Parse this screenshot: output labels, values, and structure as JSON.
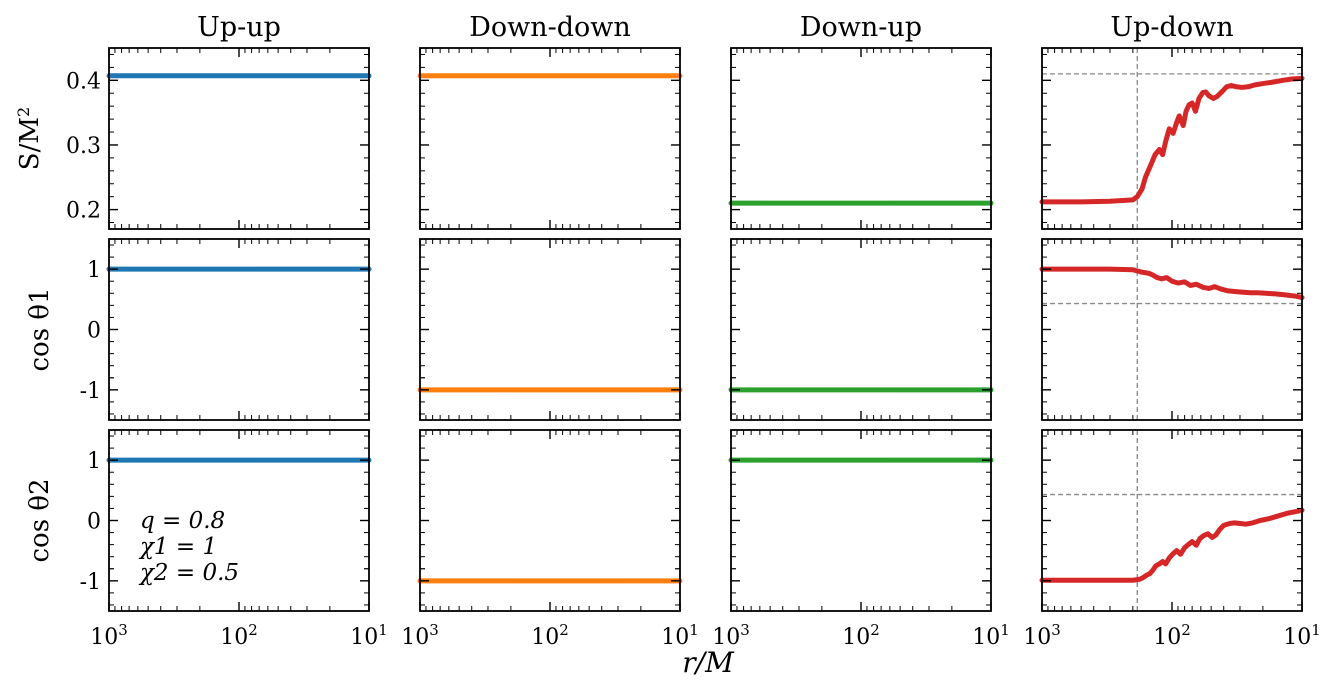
{
  "chart_data": {
    "type": "line",
    "xlabel": "r/M",
    "x_scale": "log",
    "x_direction": "decreasing",
    "xlim": [
      1000,
      10
    ],
    "x_tick_labels": [
      "10^3",
      "10^2",
      "10^1"
    ],
    "columns": [
      "Up-up",
      "Down-down",
      "Down-up",
      "Up-down"
    ],
    "rows": [
      {
        "ylabel": "S/M^2",
        "ylim": [
          0.17,
          0.45
        ],
        "yticks": [
          0.2,
          0.3,
          0.4
        ],
        "ytick_labels": [
          "0.2",
          "0.3",
          "0.4"
        ]
      },
      {
        "ylabel": "cos θ1",
        "ylim": [
          -1.5,
          1.5
        ],
        "yticks": [
          -1,
          0,
          1
        ],
        "ytick_labels": [
          "-1",
          "0",
          "1"
        ]
      },
      {
        "ylabel": "cos θ2",
        "ylim": [
          -1.5,
          1.5
        ],
        "yticks": [
          -1,
          0,
          1
        ],
        "ytick_labels": [
          "-1",
          "0",
          "1"
        ]
      }
    ],
    "annotation": [
      "q = 0.8",
      "χ1 = 1",
      "χ2 = 0.5"
    ],
    "colors": [
      "#1f77b4",
      "#ff7f0e",
      "#2ca02c",
      "#d62728"
    ],
    "reference_lines": {
      "x": 185,
      "S_over_M2": 0.41,
      "cos_theta1": 0.43,
      "cos_theta2": 0.43
    },
    "series": [
      {
        "column": "Up-up",
        "row": 0,
        "x": [
          1000,
          10
        ],
        "y": [
          0.407,
          0.407
        ]
      },
      {
        "column": "Up-up",
        "row": 1,
        "x": [
          1000,
          10
        ],
        "y": [
          1.0,
          1.0
        ]
      },
      {
        "column": "Up-up",
        "row": 2,
        "x": [
          1000,
          10
        ],
        "y": [
          1.0,
          1.0
        ]
      },
      {
        "column": "Down-down",
        "row": 0,
        "x": [
          1000,
          10
        ],
        "y": [
          0.407,
          0.407
        ]
      },
      {
        "column": "Down-down",
        "row": 1,
        "x": [
          1000,
          10
        ],
        "y": [
          -1.0,
          -1.0
        ]
      },
      {
        "column": "Down-down",
        "row": 2,
        "x": [
          1000,
          10
        ],
        "y": [
          -1.0,
          -1.0
        ]
      },
      {
        "column": "Down-up",
        "row": 0,
        "x": [
          1000,
          10
        ],
        "y": [
          0.21,
          0.21
        ]
      },
      {
        "column": "Down-up",
        "row": 1,
        "x": [
          1000,
          10
        ],
        "y": [
          -1.0,
          -1.0
        ]
      },
      {
        "column": "Down-up",
        "row": 2,
        "x": [
          1000,
          10
        ],
        "y": [
          1.0,
          1.0
        ]
      },
      {
        "column": "Up-down",
        "row": 0,
        "x": [
          1000,
          700,
          500,
          300,
          200,
          185,
          170,
          160,
          145,
          135,
          125,
          118,
          112,
          105,
          98,
          92,
          88,
          82,
          78,
          74,
          70,
          66,
          62,
          58,
          55,
          52,
          48,
          45,
          41,
          38,
          35,
          32,
          29,
          26,
          23,
          20,
          17,
          14,
          12,
          10
        ],
        "y": [
          0.212,
          0.212,
          0.212,
          0.213,
          0.215,
          0.22,
          0.232,
          0.25,
          0.27,
          0.285,
          0.293,
          0.285,
          0.305,
          0.325,
          0.318,
          0.335,
          0.345,
          0.33,
          0.352,
          0.362,
          0.365,
          0.352,
          0.372,
          0.381,
          0.382,
          0.376,
          0.372,
          0.375,
          0.383,
          0.39,
          0.392,
          0.39,
          0.389,
          0.39,
          0.393,
          0.395,
          0.397,
          0.4,
          0.402,
          0.403
        ]
      },
      {
        "column": "Up-down",
        "row": 1,
        "x": [
          1000,
          500,
          300,
          200,
          185,
          170,
          150,
          140,
          130,
          120,
          110,
          100,
          90,
          80,
          72,
          65,
          58,
          52,
          47,
          42,
          37,
          33,
          29,
          25,
          22,
          19,
          16,
          13,
          11,
          10
        ],
        "y": [
          1.0,
          1.0,
          1.0,
          0.99,
          0.97,
          0.95,
          0.93,
          0.9,
          0.86,
          0.84,
          0.86,
          0.8,
          0.77,
          0.79,
          0.73,
          0.75,
          0.7,
          0.68,
          0.71,
          0.67,
          0.64,
          0.63,
          0.62,
          0.61,
          0.61,
          0.6,
          0.59,
          0.57,
          0.55,
          0.53
        ]
      },
      {
        "column": "Up-down",
        "row": 2,
        "x": [
          1000,
          500,
          300,
          200,
          185,
          175,
          165,
          155,
          148,
          140,
          133,
          125,
          118,
          112,
          105,
          98,
          92,
          86,
          80,
          75,
          70,
          65,
          61,
          57,
          53,
          49,
          46,
          43,
          40,
          36,
          33,
          30,
          27,
          24,
          21,
          18,
          15,
          13,
          11,
          10
        ],
        "y": [
          -0.99,
          -0.99,
          -0.99,
          -0.99,
          -0.98,
          -0.97,
          -0.94,
          -0.9,
          -0.88,
          -0.82,
          -0.75,
          -0.72,
          -0.68,
          -0.72,
          -0.62,
          -0.55,
          -0.5,
          -0.56,
          -0.45,
          -0.4,
          -0.35,
          -0.41,
          -0.3,
          -0.25,
          -0.22,
          -0.28,
          -0.24,
          -0.15,
          -0.08,
          -0.05,
          -0.04,
          -0.05,
          -0.06,
          -0.04,
          0.0,
          0.03,
          0.08,
          0.12,
          0.15,
          0.17
        ]
      }
    ]
  }
}
